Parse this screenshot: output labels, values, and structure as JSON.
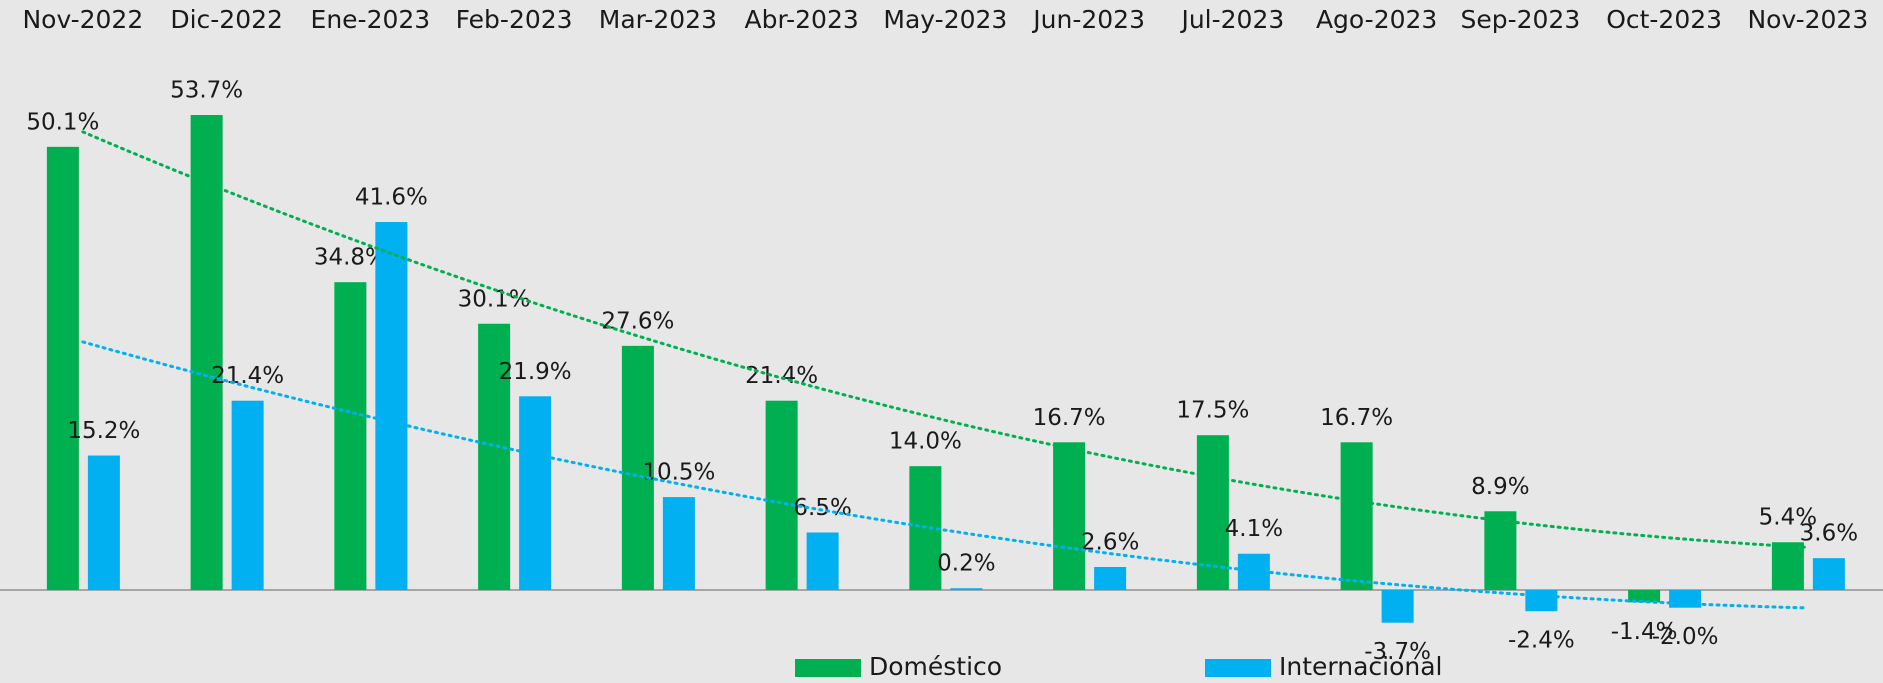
{
  "chart_data": {
    "type": "bar",
    "categories": [
      "Nov-2022",
      "Dic-2022",
      "Ene-2023",
      "Feb-2023",
      "Mar-2023",
      "Abr-2023",
      "May-2023",
      "Jun-2023",
      "Jul-2023",
      "Ago-2023",
      "Sep-2023",
      "Oct-2023",
      "Nov-2023"
    ],
    "series": [
      {
        "name": "Doméstico",
        "color": "#00b050",
        "values": [
          50.1,
          53.7,
          34.8,
          30.1,
          27.6,
          21.4,
          14.0,
          16.7,
          17.5,
          16.7,
          8.9,
          -1.4,
          5.4
        ],
        "value_labels": [
          "50.1%",
          "53.7%",
          "34.8%",
          "30.1%",
          "27.6%",
          "21.4%",
          "14.0%",
          "16.7%",
          "17.5%",
          "16.7%",
          "8.9%",
          "-1.4%",
          "5.4%"
        ]
      },
      {
        "name": "Internacional",
        "color": "#00b0f0",
        "values": [
          15.2,
          21.4,
          41.6,
          21.9,
          10.5,
          6.5,
          0.2,
          2.6,
          4.1,
          -3.7,
          -2.4,
          -2.0,
          3.6
        ],
        "value_labels": [
          "15.2%",
          "21.4%",
          "41.6%",
          "21.9%",
          "10.5%",
          "6.5%",
          "0.2%",
          "2.6%",
          "4.1%",
          "-3.7%",
          "-2.4%",
          "-2.0%",
          "3.6%"
        ]
      }
    ],
    "trendline": true,
    "legend": "bottom"
  }
}
